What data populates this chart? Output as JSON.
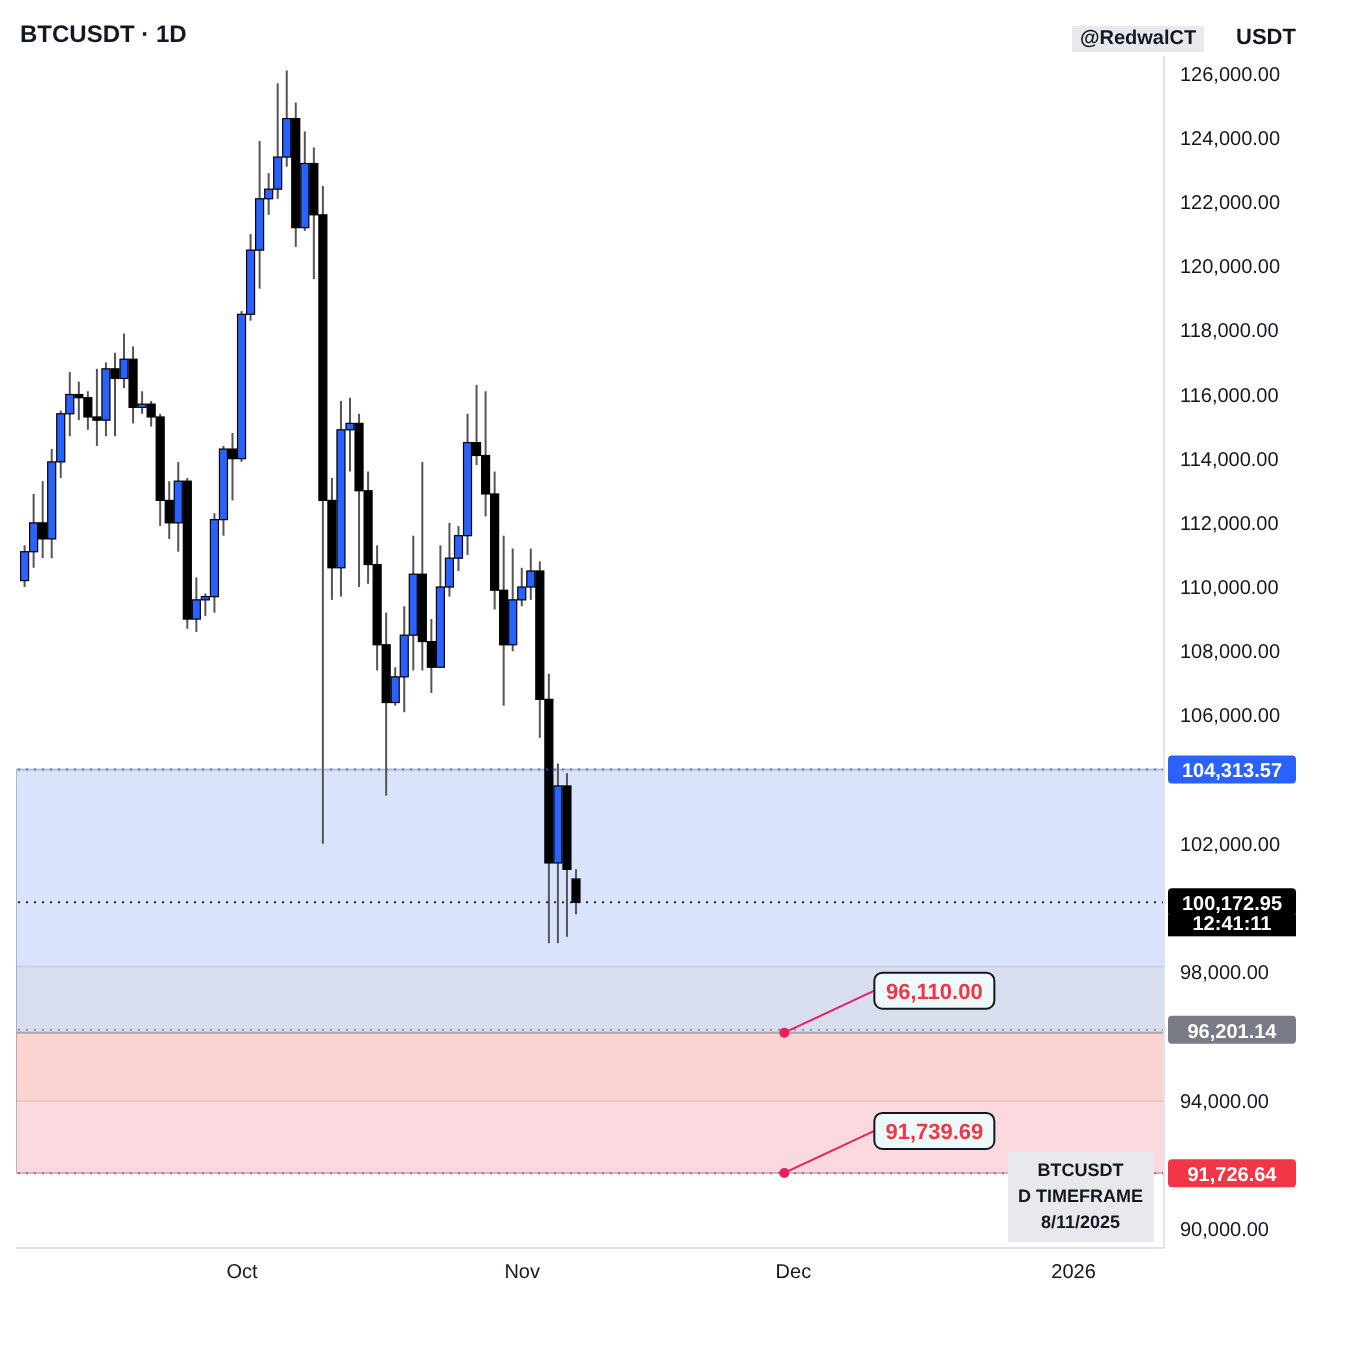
{
  "chart_data": {
    "type": "candlestick",
    "title": "BTCUSDT · 1D",
    "x": [
      "2025-09-07",
      "2025-09-08",
      "2025-09-09",
      "2025-09-10",
      "2025-09-11",
      "2025-09-12",
      "2025-09-13",
      "2025-09-14",
      "2025-09-15",
      "2025-09-16",
      "2025-09-17",
      "2025-09-18",
      "2025-09-19",
      "2025-09-20",
      "2025-09-21",
      "2025-09-22",
      "2025-09-23",
      "2025-09-24",
      "2025-09-25",
      "2025-09-26",
      "2025-09-27",
      "2025-09-28",
      "2025-09-29",
      "2025-09-30",
      "2025-10-01",
      "2025-10-02",
      "2025-10-03",
      "2025-10-04",
      "2025-10-05",
      "2025-10-06",
      "2025-10-07",
      "2025-10-08",
      "2025-10-09",
      "2025-10-10",
      "2025-10-11",
      "2025-10-12",
      "2025-10-13",
      "2025-10-14",
      "2025-10-15",
      "2025-10-16",
      "2025-10-17",
      "2025-10-18",
      "2025-10-19",
      "2025-10-20",
      "2025-10-21",
      "2025-10-22",
      "2025-10-23",
      "2025-10-24",
      "2025-10-25",
      "2025-10-26",
      "2025-10-27",
      "2025-10-28",
      "2025-10-29",
      "2025-10-30",
      "2025-10-31",
      "2025-11-01",
      "2025-11-02",
      "2025-11-03",
      "2025-11-04",
      "2025-11-05",
      "2025-11-06",
      "2025-11-07"
    ],
    "ohlc": [
      [
        110200,
        111300,
        110000,
        111100
      ],
      [
        111100,
        112900,
        110600,
        112000
      ],
      [
        112000,
        113300,
        110900,
        111500
      ],
      [
        111500,
        114300,
        110900,
        113900
      ],
      [
        113900,
        115500,
        113400,
        115400
      ],
      [
        115400,
        116700,
        114700,
        116000
      ],
      [
        116000,
        116400,
        115200,
        115900
      ],
      [
        115900,
        116100,
        114900,
        115300
      ],
      [
        115300,
        116800,
        114400,
        115200
      ],
      [
        115200,
        117000,
        114700,
        116800
      ],
      [
        116800,
        117300,
        114700,
        116500
      ],
      [
        116500,
        117900,
        116200,
        117100
      ],
      [
        117100,
        117500,
        115100,
        115600
      ],
      [
        115600,
        116100,
        115400,
        115700
      ],
      [
        115700,
        115800,
        115000,
        115300
      ],
      [
        115300,
        115400,
        111900,
        112700
      ],
      [
        112700,
        113300,
        111500,
        112000
      ],
      [
        112000,
        113900,
        111100,
        113300
      ],
      [
        113300,
        113400,
        108700,
        109000
      ],
      [
        109000,
        110300,
        108600,
        109600
      ],
      [
        109600,
        109800,
        109100,
        109700
      ],
      [
        109700,
        112300,
        109200,
        112100
      ],
      [
        112100,
        114400,
        111600,
        114300
      ],
      [
        114300,
        114800,
        112700,
        114000
      ],
      [
        114000,
        118600,
        113900,
        118500
      ],
      [
        118500,
        121000,
        118300,
        120500
      ],
      [
        120500,
        123900,
        119300,
        122100
      ],
      [
        122100,
        122900,
        121600,
        122400
      ],
      [
        122400,
        125700,
        122100,
        123400
      ],
      [
        123400,
        126100,
        123100,
        124600
      ],
      [
        124600,
        125100,
        120600,
        121200
      ],
      [
        121200,
        124200,
        121100,
        123200
      ],
      [
        123200,
        123700,
        119600,
        121600
      ],
      [
        121600,
        122500,
        102000,
        112700
      ],
      [
        112700,
        113400,
        109600,
        110600
      ],
      [
        110600,
        115800,
        109700,
        114900
      ],
      [
        114900,
        115900,
        113600,
        115100
      ],
      [
        115100,
        115400,
        110000,
        113000
      ],
      [
        113000,
        113600,
        110100,
        110700
      ],
      [
        110700,
        111300,
        107400,
        108200
      ],
      [
        108200,
        109200,
        103500,
        106400
      ],
      [
        106400,
        107500,
        106300,
        107200
      ],
      [
        107200,
        109400,
        106100,
        108500
      ],
      [
        108500,
        111600,
        107400,
        110400
      ],
      [
        110400,
        113900,
        107400,
        108300
      ],
      [
        108300,
        109000,
        106700,
        107500
      ],
      [
        107500,
        111300,
        107500,
        110000
      ],
      [
        110000,
        112000,
        109700,
        110900
      ],
      [
        110900,
        111900,
        110500,
        111600
      ],
      [
        111600,
        115400,
        111000,
        114500
      ],
      [
        114500,
        116300,
        113800,
        114100
      ],
      [
        114100,
        116100,
        112200,
        112900
      ],
      [
        112900,
        113600,
        109300,
        109900
      ],
      [
        109900,
        111600,
        106300,
        108200
      ],
      [
        108200,
        111200,
        108000,
        109600
      ],
      [
        109600,
        110600,
        109400,
        110000
      ],
      [
        110000,
        111200,
        109600,
        110500
      ],
      [
        110500,
        110800,
        105300,
        106500
      ],
      [
        106500,
        107300,
        98900,
        101400
      ],
      [
        101400,
        104500,
        98900,
        103800
      ],
      [
        103800,
        104200,
        99100,
        101200
      ],
      [
        100900,
        101200,
        99800,
        100172.95
      ]
    ],
    "colors": [
      "#2962ff",
      "#2962ff",
      "#000000",
      "#2962ff",
      "#2962ff",
      "#2962ff",
      "#000000",
      "#000000",
      "#000000",
      "#2962ff",
      "#000000",
      "#2962ff",
      "#000000",
      "#2962ff",
      "#000000",
      "#000000",
      "#000000",
      "#2962ff",
      "#000000",
      "#2962ff",
      "#2962ff",
      "#2962ff",
      "#2962ff",
      "#000000",
      "#2962ff",
      "#2962ff",
      "#2962ff",
      "#2962ff",
      "#2962ff",
      "#2962ff",
      "#000000",
      "#2962ff",
      "#000000",
      "#000000",
      "#000000",
      "#2962ff",
      "#2962ff",
      "#000000",
      "#000000",
      "#000000",
      "#000000",
      "#2962ff",
      "#2962ff",
      "#2962ff",
      "#000000",
      "#000000",
      "#2962ff",
      "#2962ff",
      "#2962ff",
      "#2962ff",
      "#000000",
      "#000000",
      "#000000",
      "#000000",
      "#2962ff",
      "#2962ff",
      "#2962ff",
      "#000000",
      "#000000",
      "#2962ff",
      "#000000",
      "#000000"
    ],
    "xlim": [
      "2025-09-06",
      "2026-01-11"
    ],
    "xticks": [
      {
        "value": "2025-10-01",
        "label": "Oct"
      },
      {
        "value": "2025-11-01",
        "label": "Nov"
      },
      {
        "value": "2025-12-01",
        "label": "Dec"
      },
      {
        "value": "2026-01-01",
        "label": "2026"
      }
    ],
    "ylim": [
      89400,
      126550
    ],
    "yticks": [
      {
        "value": 90000,
        "label": "90,000.00"
      },
      {
        "value": 94000,
        "label": "94,000.00"
      },
      {
        "value": 98000,
        "label": "98,000.00"
      },
      {
        "value": 102000,
        "label": "102,000.00"
      },
      {
        "value": 106000,
        "label": "106,000.00"
      },
      {
        "value": 108000,
        "label": "108,000.00"
      },
      {
        "value": 110000,
        "label": "110,000.00"
      },
      {
        "value": 112000,
        "label": "112,000.00"
      },
      {
        "value": 114000,
        "label": "114,000.00"
      },
      {
        "value": 116000,
        "label": "116,000.00"
      },
      {
        "value": 118000,
        "label": "118,000.00"
      },
      {
        "value": 120000,
        "label": "120,000.00"
      },
      {
        "value": 122000,
        "label": "122,000.00"
      },
      {
        "value": 124000,
        "label": "124,000.00"
      },
      {
        "value": 126000,
        "label": "126,000.00"
      }
    ],
    "grid": false,
    "bands": [
      {
        "axis": "y",
        "from": 93970,
        "to": 98170,
        "color": "#ffe3bd"
      },
      {
        "axis": "y",
        "from": 96110,
        "to": 104313.57,
        "color": "#c9d8fb"
      },
      {
        "axis": "y",
        "from": 91739.69,
        "to": 96110,
        "color": "#f9c9d0"
      }
    ],
    "ref_lines": [
      {
        "axis": "y",
        "value": 104313.57,
        "label": "104,313.57",
        "color": "#2962ff"
      },
      {
        "axis": "y",
        "value": 100172.95,
        "label": "100,172.95",
        "color": "#000000"
      },
      {
        "axis": "y",
        "value": 96201.14,
        "label": "96,201.14",
        "color": "#787b86"
      },
      {
        "axis": "y",
        "value": 91726.64,
        "label": "91,726.64",
        "color": "#f23645"
      }
    ],
    "annotations": [
      "@RedwalCT",
      "USDT",
      "12:41:11",
      "BTCUSDT",
      "D TIMEFRAME",
      "8/11/2025",
      {
        "text": "96,110.00",
        "x": "2025-11-30",
        "y": 96110
      },
      {
        "text": "91,739.69",
        "x": "2025-11-30",
        "y": 91739.69
      }
    ]
  }
}
